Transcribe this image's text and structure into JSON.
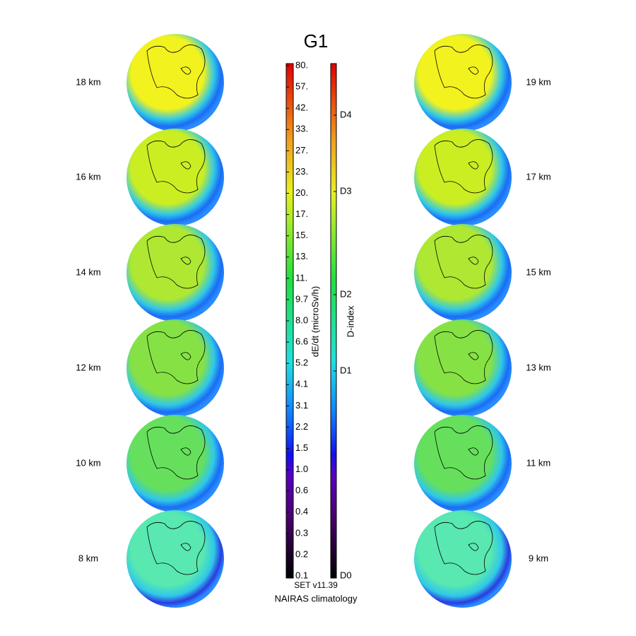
{
  "title": "G1",
  "panels": {
    "left": [
      "18 km",
      "16 km",
      "14 km",
      "12 km",
      "10 km",
      "8 km"
    ],
    "right": [
      "19 km",
      "17 km",
      "15 km",
      "13 km",
      "11 km",
      "9 km"
    ]
  },
  "colorbar": {
    "label": "dE/dt (microSv/h)",
    "ticks": [
      "80.",
      "57.",
      "42.",
      "33.",
      "27.",
      "23.",
      "20.",
      "17.",
      "15.",
      "13.",
      "11.",
      "9.7",
      "8.0",
      "6.6",
      "5.2",
      "4.1",
      "3.1",
      "2.2",
      "1.5",
      "1.0",
      "0.6",
      "0.4",
      "0.3",
      "0.2",
      "0.1"
    ]
  },
  "dindex": {
    "label": "D-index",
    "ticks": [
      "D4",
      "D3",
      "D2",
      "D1",
      "D0"
    ]
  },
  "footer": {
    "version": "SET v11.39",
    "source": "NAIRAS climatology"
  }
}
